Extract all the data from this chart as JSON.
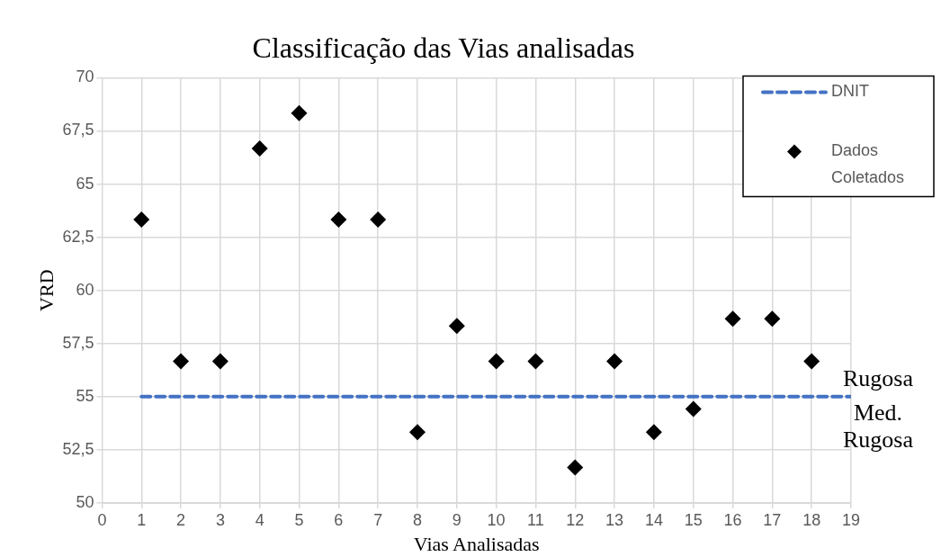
{
  "chart_data": {
    "type": "scatter",
    "title": "Classificação das Vias analisadas",
    "xlabel": "Vias Analisadas",
    "ylabel": "VRD",
    "xlim": [
      0,
      19
    ],
    "xticks": [
      0,
      1,
      2,
      3,
      4,
      5,
      6,
      7,
      8,
      9,
      10,
      11,
      12,
      13,
      14,
      15,
      16,
      17,
      18,
      19
    ],
    "ylim": [
      50,
      70
    ],
    "yticks": [
      50,
      {
        "value": 52.5,
        "label": "52,5"
      },
      55,
      {
        "value": 57.5,
        "label": "57,5"
      },
      60,
      {
        "value": 62.5,
        "label": "62,5"
      },
      65,
      {
        "value": 67.5,
        "label": "67,5"
      },
      70
    ],
    "grid": true,
    "legend": "top right",
    "series": [
      {
        "name": "DNIT",
        "type": "line",
        "color": "#4472c4",
        "line_style": "dashed",
        "x": [
          1,
          19
        ],
        "values": [
          55,
          55
        ]
      },
      {
        "name": "Dados Coletados",
        "marker": "diamond",
        "color": "#000000",
        "x": [
          1,
          2,
          3,
          4,
          5,
          6,
          7,
          8,
          9,
          10,
          11,
          12,
          13,
          14,
          15,
          16,
          17,
          18
        ],
        "values": [
          63.33,
          56.67,
          56.67,
          66.67,
          68.33,
          63.33,
          63.33,
          53.33,
          58.33,
          56.67,
          56.67,
          51.67,
          56.67,
          53.33,
          54.42,
          58.67,
          58.67,
          56.67
        ]
      }
    ],
    "annotations": [
      {
        "text": "Rugosa",
        "x": 19,
        "y": 55
      },
      {
        "text": "Med. Rugosa",
        "x": 19,
        "y": 55
      }
    ]
  }
}
